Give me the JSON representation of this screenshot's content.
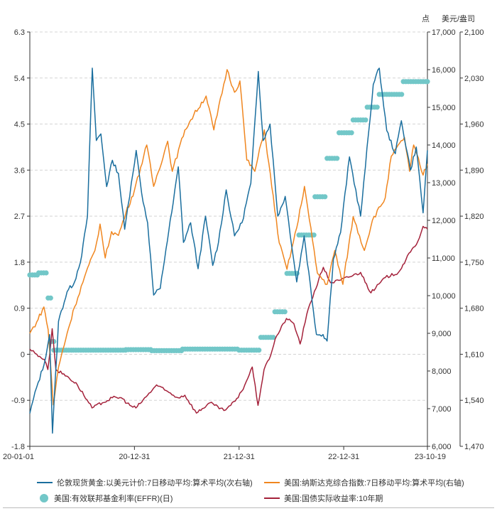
{
  "chart_data": {
    "type": "line",
    "axis_titles": {
      "right_inner": "点",
      "right_outer": "美元/盎司"
    },
    "x_ticks": [
      "20-01-01",
      "20-12-31",
      "21-12-31",
      "22-12-31",
      "23-10-19"
    ],
    "x_range": [
      "2020-01-01",
      "2023-10-19"
    ],
    "left_axis": {
      "ticks": [
        "-1.8",
        "-0.9",
        "0",
        "0.9",
        "1.8",
        "2.7",
        "3.6",
        "4.5",
        "5.4",
        "6.3"
      ],
      "range": [
        -1.8,
        6.3
      ]
    },
    "right_axis": {
      "ticks": [
        "6,000",
        "7,000",
        "8,000",
        "9,000",
        "10,000",
        "11,000",
        "12,000",
        "13,000",
        "14,000",
        "15,000",
        "16,000",
        "17,000"
      ],
      "range": [
        6000,
        17000
      ]
    },
    "right_outer_axis": {
      "ticks": [
        "1,470",
        "1,540",
        "1,610",
        "1,680",
        "1,750",
        "1,820",
        "1,890",
        "1,960",
        "2,030",
        "2,100"
      ],
      "range": [
        1470,
        2100
      ]
    },
    "grid": "horizontal dashed",
    "legend_position": "bottom",
    "series": [
      {
        "name": "伦敦现货黄金:以美元计价:7日移动平均:算术平均(次右轴)",
        "axis": "right_outer",
        "color": "#1a6e9e",
        "style": "line",
        "points": [
          [
            "2020-01-01",
            1520
          ],
          [
            "2020-01-25",
            1560
          ],
          [
            "2020-02-20",
            1595
          ],
          [
            "2020-03-10",
            1640
          ],
          [
            "2020-03-20",
            1490
          ],
          [
            "2020-04-10",
            1660
          ],
          [
            "2020-05-10",
            1705
          ],
          [
            "2020-06-05",
            1720
          ],
          [
            "2020-06-30",
            1760
          ],
          [
            "2020-07-20",
            1820
          ],
          [
            "2020-08-06",
            2045
          ],
          [
            "2020-08-20",
            1935
          ],
          [
            "2020-09-05",
            1945
          ],
          [
            "2020-09-25",
            1865
          ],
          [
            "2020-10-15",
            1905
          ],
          [
            "2020-11-05",
            1885
          ],
          [
            "2020-11-27",
            1800
          ],
          [
            "2020-12-20",
            1870
          ],
          [
            "2021-01-06",
            1920
          ],
          [
            "2021-01-25",
            1855
          ],
          [
            "2021-02-15",
            1810
          ],
          [
            "2021-03-08",
            1700
          ],
          [
            "2021-03-31",
            1710
          ],
          [
            "2021-04-20",
            1770
          ],
          [
            "2021-05-15",
            1840
          ],
          [
            "2021-06-02",
            1895
          ],
          [
            "2021-06-20",
            1780
          ],
          [
            "2021-07-15",
            1810
          ],
          [
            "2021-08-10",
            1740
          ],
          [
            "2021-09-05",
            1820
          ],
          [
            "2021-09-30",
            1745
          ],
          [
            "2021-10-20",
            1780
          ],
          [
            "2021-11-16",
            1860
          ],
          [
            "2021-12-15",
            1790
          ],
          [
            "2022-01-10",
            1810
          ],
          [
            "2022-02-10",
            1870
          ],
          [
            "2022-03-08",
            2040
          ],
          [
            "2022-03-25",
            1935
          ],
          [
            "2022-04-18",
            1960
          ],
          [
            "2022-05-15",
            1820
          ],
          [
            "2022-06-10",
            1850
          ],
          [
            "2022-07-20",
            1720
          ],
          [
            "2022-08-15",
            1790
          ],
          [
            "2022-09-27",
            1640
          ],
          [
            "2022-10-20",
            1640
          ],
          [
            "2022-11-03",
            1630
          ],
          [
            "2022-11-25",
            1755
          ],
          [
            "2022-12-20",
            1795
          ],
          [
            "2023-01-20",
            1910
          ],
          [
            "2023-02-28",
            1820
          ],
          [
            "2023-04-13",
            2020
          ],
          [
            "2023-05-04",
            2045
          ],
          [
            "2023-05-30",
            1950
          ],
          [
            "2023-06-29",
            1915
          ],
          [
            "2023-07-20",
            1965
          ],
          [
            "2023-08-21",
            1890
          ],
          [
            "2023-09-10",
            1925
          ],
          [
            "2023-10-04",
            1825
          ],
          [
            "2023-10-19",
            1920
          ]
        ]
      },
      {
        "name": "美国:纳斯达克综合指数:7日移动平均:算术平均(右轴)",
        "axis": "right",
        "color": "#f0861f",
        "style": "line",
        "points": [
          [
            "2020-01-01",
            9000
          ],
          [
            "2020-01-25",
            9300
          ],
          [
            "2020-02-19",
            9700
          ],
          [
            "2020-03-05",
            9100
          ],
          [
            "2020-03-23",
            7100
          ],
          [
            "2020-04-10",
            8100
          ],
          [
            "2020-05-10",
            9000
          ],
          [
            "2020-06-05",
            9700
          ],
          [
            "2020-07-10",
            10500
          ],
          [
            "2020-08-15",
            11200
          ],
          [
            "2020-09-02",
            11900
          ],
          [
            "2020-09-20",
            11000
          ],
          [
            "2020-10-12",
            11700
          ],
          [
            "2020-11-05",
            11600
          ],
          [
            "2020-12-01",
            12200
          ],
          [
            "2020-12-31",
            12800
          ],
          [
            "2021-02-12",
            14000
          ],
          [
            "2021-03-08",
            12900
          ],
          [
            "2021-04-26",
            14100
          ],
          [
            "2021-05-12",
            13300
          ],
          [
            "2021-06-25",
            14400
          ],
          [
            "2021-07-26",
            14800
          ],
          [
            "2021-09-07",
            15300
          ],
          [
            "2021-10-04",
            14400
          ],
          [
            "2021-11-19",
            16000
          ],
          [
            "2021-12-15",
            15400
          ],
          [
            "2022-01-03",
            15700
          ],
          [
            "2022-01-27",
            13600
          ],
          [
            "2022-02-24",
            13300
          ],
          [
            "2022-03-29",
            14400
          ],
          [
            "2022-05-20",
            11400
          ],
          [
            "2022-06-16",
            10700
          ],
          [
            "2022-07-20",
            11800
          ],
          [
            "2022-08-16",
            12900
          ],
          [
            "2022-09-30",
            10600
          ],
          [
            "2022-11-03",
            10300
          ],
          [
            "2022-11-30",
            11200
          ],
          [
            "2022-12-28",
            10300
          ],
          [
            "2023-02-02",
            12100
          ],
          [
            "2023-03-13",
            11200
          ],
          [
            "2023-04-10",
            12000
          ],
          [
            "2023-05-25",
            12600
          ],
          [
            "2023-06-15",
            13700
          ],
          [
            "2023-07-31",
            14200
          ],
          [
            "2023-08-18",
            13300
          ],
          [
            "2023-09-01",
            14000
          ],
          [
            "2023-10-04",
            13200
          ],
          [
            "2023-10-19",
            13500
          ]
        ]
      },
      {
        "name": "美国:有效联邦基金利率(EFFR)(日)",
        "axis": "left",
        "color": "#72c7c8",
        "style": "dots",
        "points": [
          [
            "2020-01-01",
            1.55
          ],
          [
            "2020-02-01",
            1.59
          ],
          [
            "2020-03-05",
            1.1
          ],
          [
            "2020-03-16",
            0.25
          ],
          [
            "2020-03-25",
            0.08
          ],
          [
            "2020-06-01",
            0.08
          ],
          [
            "2020-12-01",
            0.09
          ],
          [
            "2021-03-01",
            0.07
          ],
          [
            "2021-06-17",
            0.1
          ],
          [
            "2021-12-31",
            0.08
          ],
          [
            "2022-03-17",
            0.33
          ],
          [
            "2022-05-05",
            0.83
          ],
          [
            "2022-06-16",
            1.58
          ],
          [
            "2022-07-28",
            2.33
          ],
          [
            "2022-09-22",
            3.08
          ],
          [
            "2022-11-03",
            3.83
          ],
          [
            "2022-12-15",
            4.33
          ],
          [
            "2023-02-02",
            4.58
          ],
          [
            "2023-03-23",
            4.83
          ],
          [
            "2023-05-04",
            5.08
          ],
          [
            "2023-07-27",
            5.33
          ],
          [
            "2023-10-19",
            5.33
          ]
        ]
      },
      {
        "name": "美国:国债实际收益率:10年期",
        "axis": "left",
        "color": "#a4213a",
        "style": "line",
        "points": [
          [
            "2020-01-01",
            0.1
          ],
          [
            "2020-01-25",
            0.0
          ],
          [
            "2020-02-20",
            -0.1
          ],
          [
            "2020-03-04",
            -0.3
          ],
          [
            "2020-03-19",
            0.5
          ],
          [
            "2020-04-01",
            -0.3
          ],
          [
            "2020-05-15",
            -0.45
          ],
          [
            "2020-06-15",
            -0.6
          ],
          [
            "2020-08-05",
            -1.05
          ],
          [
            "2020-09-10",
            -0.95
          ],
          [
            "2020-10-15",
            -0.85
          ],
          [
            "2020-11-15",
            -0.85
          ],
          [
            "2020-12-15",
            -1.0
          ],
          [
            "2021-01-05",
            -1.05
          ],
          [
            "2021-02-15",
            -0.8
          ],
          [
            "2021-03-18",
            -0.6
          ],
          [
            "2021-04-15",
            -0.7
          ],
          [
            "2021-06-01",
            -0.85
          ],
          [
            "2021-06-25",
            -0.8
          ],
          [
            "2021-08-04",
            -1.15
          ],
          [
            "2021-09-20",
            -0.95
          ],
          [
            "2021-11-08",
            -1.1
          ],
          [
            "2021-12-02",
            -1.0
          ],
          [
            "2021-12-28",
            -0.85
          ],
          [
            "2022-01-20",
            -0.6
          ],
          [
            "2022-02-15",
            -0.25
          ],
          [
            "2022-03-07",
            -1.0
          ],
          [
            "2022-03-28",
            -0.3
          ],
          [
            "2022-04-15",
            -0.1
          ],
          [
            "2022-05-06",
            0.3
          ],
          [
            "2022-06-14",
            0.7
          ],
          [
            "2022-07-10",
            0.6
          ],
          [
            "2022-08-01",
            0.2
          ],
          [
            "2022-08-30",
            0.9
          ],
          [
            "2022-10-21",
            1.7
          ],
          [
            "2022-11-15",
            1.4
          ],
          [
            "2022-12-20",
            1.45
          ],
          [
            "2023-02-28",
            1.6
          ],
          [
            "2023-04-05",
            1.2
          ],
          [
            "2023-05-25",
            1.5
          ],
          [
            "2023-07-10",
            1.6
          ],
          [
            "2023-08-21",
            2.0
          ],
          [
            "2023-09-15",
            2.2
          ],
          [
            "2023-10-04",
            2.5
          ],
          [
            "2023-10-19",
            2.45
          ]
        ]
      }
    ]
  },
  "legend": [
    {
      "label": "伦敦现货黄金:以美元计价:7日移动平均:算术平均(次右轴)",
      "color": "#1a6e9e"
    },
    {
      "label": "美国:纳斯达克综合指数:7日移动平均:算术平均(右轴)",
      "color": "#f0861f"
    },
    {
      "label": "美国:有效联邦基金利率(EFFR)(日)",
      "color": "#72c7c8"
    },
    {
      "label": "美国:国债实际收益率:10年期",
      "color": "#a4213a"
    }
  ]
}
